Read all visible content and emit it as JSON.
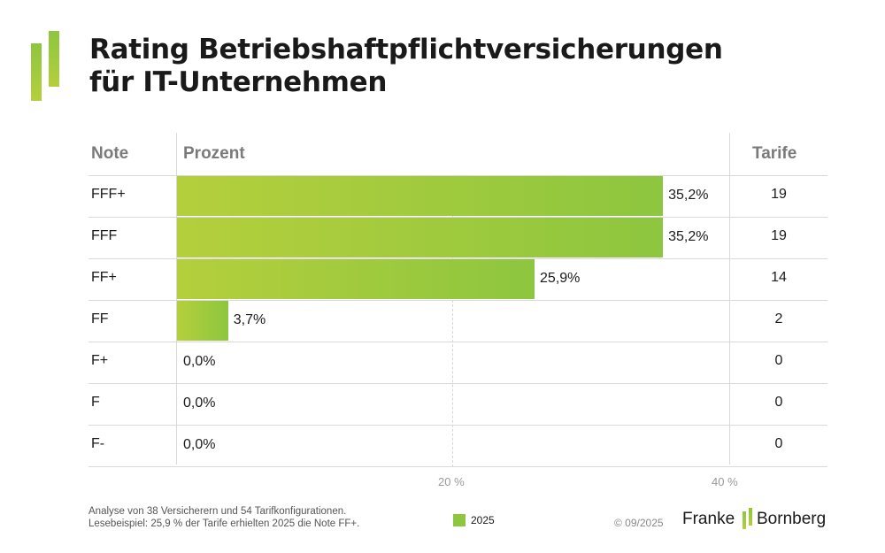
{
  "title_line1": "Rating Betriebshaftpflichtversicherungen",
  "title_line2": "für IT-Unternehmen",
  "headers": {
    "note": "Note",
    "prozent": "Prozent",
    "tarife": "Tarife"
  },
  "chart_data": {
    "type": "bar",
    "orientation": "horizontal",
    "categories": [
      "FFF+",
      "FFF",
      "FF+",
      "FF",
      "F+",
      "F",
      "F-"
    ],
    "series": [
      {
        "name": "2025",
        "values": [
          35.2,
          35.2,
          25.9,
          3.7,
          0.0,
          0.0,
          0.0
        ]
      }
    ],
    "value_labels": [
      "35,2%",
      "35,2%",
      "25,9%",
      "3,7%",
      "0,0%",
      "0,0%",
      "0,0%"
    ],
    "tarife": [
      "19",
      "19",
      "14",
      "2",
      "0",
      "0",
      "0"
    ],
    "x_ticks": [
      "20 %",
      "40 %"
    ],
    "xlim": [
      0,
      40
    ],
    "grid": true
  },
  "footnote_line1": "Analyse von 38 Versicherern und 54 Tarifkonfigurationen.",
  "footnote_line2": "Lesebeispiel: 25,9 % der Tarife erhielten 2025 die Note FF+.",
  "legend_label": "2025",
  "copyright": "© 09/2025",
  "brand_left": "Franke",
  "brand_right": "Bornberg",
  "accent_color": "#8dc63f",
  "accent_color_light": "#b5cf3c"
}
